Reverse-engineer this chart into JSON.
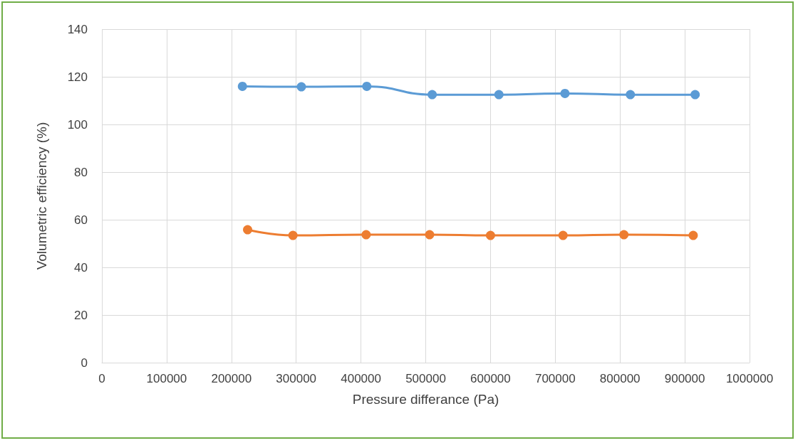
{
  "chart_data": {
    "type": "line",
    "xlabel": "Pressure differance (Pa)",
    "ylabel": "Volumetric efficiency (%)",
    "series": [
      {
        "color": "#5b9bd5",
        "x": [
          217000,
          308000,
          409000,
          510000,
          613000,
          715000,
          816000,
          916000
        ],
        "values": [
          116,
          115.8,
          116,
          112.5,
          112.5,
          113,
          112.5,
          112.5
        ]
      },
      {
        "color": "#ed7d31",
        "x": [
          225000,
          295000,
          408000,
          506000,
          600000,
          712000,
          806000,
          913000
        ],
        "values": [
          55.8,
          53.4,
          53.7,
          53.7,
          53.4,
          53.4,
          53.7,
          53.4
        ]
      }
    ],
    "xlim": [
      0,
      1000000
    ],
    "xticks": [
      0,
      100000,
      200000,
      300000,
      400000,
      500000,
      600000,
      700000,
      800000,
      900000,
      1000000
    ],
    "ylim": [
      0,
      140
    ],
    "yticks": [
      0,
      20,
      40,
      60,
      80,
      100,
      120,
      140
    ],
    "grid": true,
    "marker": "circle",
    "line_style": "solid"
  }
}
